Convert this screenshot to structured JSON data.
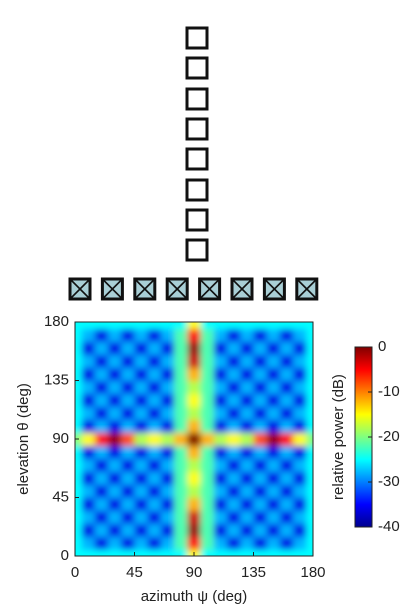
{
  "chart_data": {
    "type": "heatmap",
    "xlabel": "azimuth ψ (deg)",
    "ylabel": "elevation θ (deg)",
    "x": [
      0,
      10,
      20,
      30,
      40,
      50,
      60,
      70,
      80,
      90,
      100,
      110,
      120,
      130,
      140,
      150,
      160,
      170,
      180
    ],
    "y": [
      0,
      10,
      20,
      30,
      40,
      50,
      60,
      70,
      80,
      90,
      100,
      110,
      120,
      130,
      140,
      150,
      160,
      170,
      180
    ],
    "xlim": [
      0,
      180
    ],
    "ylim": [
      0,
      180
    ],
    "xticks": [
      0,
      45,
      90,
      135,
      180
    ],
    "yticks": [
      0,
      45,
      90,
      135,
      180
    ],
    "z": [
      [
        -25,
        -25,
        -25,
        -25,
        -25,
        -25,
        -25,
        -25,
        -25,
        -15,
        -25,
        -25,
        -25,
        -25,
        -25,
        -25,
        -25,
        -25,
        -25
      ],
      [
        -25,
        -28,
        -36,
        -28,
        -36,
        -28,
        -36,
        -28,
        -22,
        -5,
        -22,
        -28,
        -36,
        -28,
        -36,
        -28,
        -36,
        -28,
        -25
      ],
      [
        -25,
        -36,
        -28,
        -36,
        -28,
        -36,
        -28,
        -36,
        -22,
        -1,
        -22,
        -36,
        -28,
        -36,
        -28,
        -36,
        -28,
        -36,
        -25
      ],
      [
        -25,
        -28,
        -36,
        -28,
        -36,
        -28,
        -36,
        -28,
        -22,
        -3,
        -22,
        -28,
        -36,
        -28,
        -36,
        -28,
        -36,
        -28,
        -25
      ],
      [
        -25,
        -36,
        -28,
        -36,
        -28,
        -36,
        -28,
        -36,
        -22,
        -12,
        -22,
        -36,
        -28,
        -36,
        -28,
        -36,
        -28,
        -36,
        -25
      ],
      [
        -25,
        -28,
        -36,
        -28,
        -36,
        -28,
        -36,
        -28,
        -22,
        -18,
        -22,
        -28,
        -36,
        -28,
        -36,
        -28,
        -36,
        -28,
        -25
      ],
      [
        -25,
        -36,
        -28,
        -36,
        -28,
        -36,
        -28,
        -36,
        -22,
        -15,
        -22,
        -36,
        -28,
        -36,
        -28,
        -36,
        -28,
        -36,
        -25
      ],
      [
        -25,
        -28,
        -36,
        -28,
        -36,
        -28,
        -36,
        -28,
        -22,
        -18,
        -22,
        -28,
        -36,
        -28,
        -36,
        -28,
        -36,
        -28,
        -25
      ],
      [
        -25,
        -36,
        -28,
        -36,
        -28,
        -36,
        -28,
        -36,
        -22,
        -12,
        -22,
        -36,
        -28,
        -36,
        -28,
        -36,
        -28,
        -36,
        -25
      ],
      [
        -20,
        -15,
        -5,
        -1,
        -8,
        -18,
        -15,
        -18,
        -12,
        0,
        -12,
        -18,
        -15,
        -18,
        -8,
        -1,
        -5,
        -15,
        -20
      ],
      [
        -25,
        -36,
        -28,
        -36,
        -28,
        -36,
        -28,
        -36,
        -22,
        -12,
        -22,
        -36,
        -28,
        -36,
        -28,
        -36,
        -28,
        -36,
        -25
      ],
      [
        -25,
        -28,
        -36,
        -28,
        -36,
        -28,
        -36,
        -28,
        -22,
        -18,
        -22,
        -28,
        -36,
        -28,
        -36,
        -28,
        -36,
        -28,
        -25
      ],
      [
        -25,
        -36,
        -28,
        -36,
        -28,
        -36,
        -28,
        -36,
        -22,
        -15,
        -22,
        -36,
        -28,
        -36,
        -28,
        -36,
        -28,
        -36,
        -25
      ],
      [
        -25,
        -28,
        -36,
        -28,
        -36,
        -28,
        -36,
        -28,
        -22,
        -18,
        -22,
        -28,
        -36,
        -28,
        -36,
        -28,
        -36,
        -28,
        -25
      ],
      [
        -25,
        -36,
        -28,
        -36,
        -28,
        -36,
        -28,
        -36,
        -22,
        -12,
        -22,
        -36,
        -28,
        -36,
        -28,
        -36,
        -28,
        -36,
        -25
      ],
      [
        -25,
        -28,
        -36,
        -28,
        -36,
        -28,
        -36,
        -28,
        -22,
        -3,
        -22,
        -28,
        -36,
        -28,
        -36,
        -28,
        -36,
        -28,
        -25
      ],
      [
        -25,
        -36,
        -28,
        -36,
        -28,
        -36,
        -28,
        -36,
        -22,
        -1,
        -22,
        -36,
        -28,
        -36,
        -28,
        -36,
        -28,
        -36,
        -25
      ],
      [
        -25,
        -28,
        -36,
        -28,
        -36,
        -28,
        -36,
        -28,
        -22,
        -5,
        -22,
        -28,
        -36,
        -28,
        -36,
        -28,
        -36,
        -28,
        -25
      ],
      [
        -25,
        -25,
        -25,
        -25,
        -25,
        -25,
        -25,
        -25,
        -25,
        -15,
        -25,
        -25,
        -25,
        -25,
        -25,
        -25,
        -25,
        -25,
        -25
      ]
    ],
    "colorbar": {
      "label": "relative power (dB)",
      "lim": [
        -40,
        0
      ],
      "ticks": [
        0,
        -10,
        -20,
        -30,
        -40
      ]
    }
  }
}
